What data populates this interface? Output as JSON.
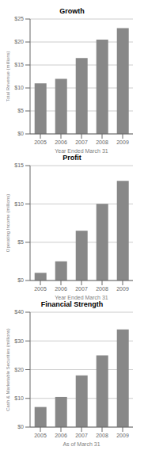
{
  "chart_data": [
    {
      "type": "bar",
      "title": "Growth",
      "xlabel": "Year Ended March 31",
      "ylabel": "Total Revenue (millions)",
      "categories": [
        "2005",
        "2006",
        "2007",
        "2008",
        "2009"
      ],
      "values": [
        11,
        12,
        16.5,
        20.5,
        23
      ],
      "color": "#888888",
      "ylim": [
        0,
        25
      ],
      "yticks": [
        {
          "value": 0,
          "label": "$0"
        },
        {
          "value": 5,
          "label": "$5"
        },
        {
          "value": 10,
          "label": "$10"
        },
        {
          "value": 15,
          "label": "$15"
        },
        {
          "value": 20,
          "label": "$20"
        },
        {
          "value": 25,
          "label": "$25"
        }
      ],
      "grid": true
    },
    {
      "type": "bar",
      "title": "Profit",
      "xlabel": "Year Ended March 31",
      "ylabel": "Operating Income (millions)",
      "categories": [
        "2005",
        "2006",
        "2007",
        "2008",
        "2009"
      ],
      "values": [
        1.0,
        2.5,
        6.5,
        10.0,
        13.0
      ],
      "color": "#888888",
      "ylim": [
        0,
        15
      ],
      "yticks": [
        {
          "value": 0,
          "label": "$0"
        },
        {
          "value": 5,
          "label": "$5"
        },
        {
          "value": 10,
          "label": "$10"
        },
        {
          "value": 15,
          "label": "$15"
        }
      ],
      "grid": true
    },
    {
      "type": "bar",
      "title": "Financial Strength",
      "xlabel": "As of March 31",
      "ylabel": "Cash & Marketable Securities (millions)",
      "categories": [
        "2005",
        "2006",
        "2007",
        "2008",
        "2009"
      ],
      "values": [
        7,
        10.5,
        18,
        25,
        34
      ],
      "color": "#888888",
      "ylim": [
        0,
        40
      ],
      "yticks": [
        {
          "value": 0,
          "label": "$0"
        },
        {
          "value": 10,
          "label": "$10"
        },
        {
          "value": 20,
          "label": "$20"
        },
        {
          "value": 30,
          "label": "$30"
        },
        {
          "value": 40,
          "label": "$40"
        }
      ],
      "grid": true
    }
  ]
}
